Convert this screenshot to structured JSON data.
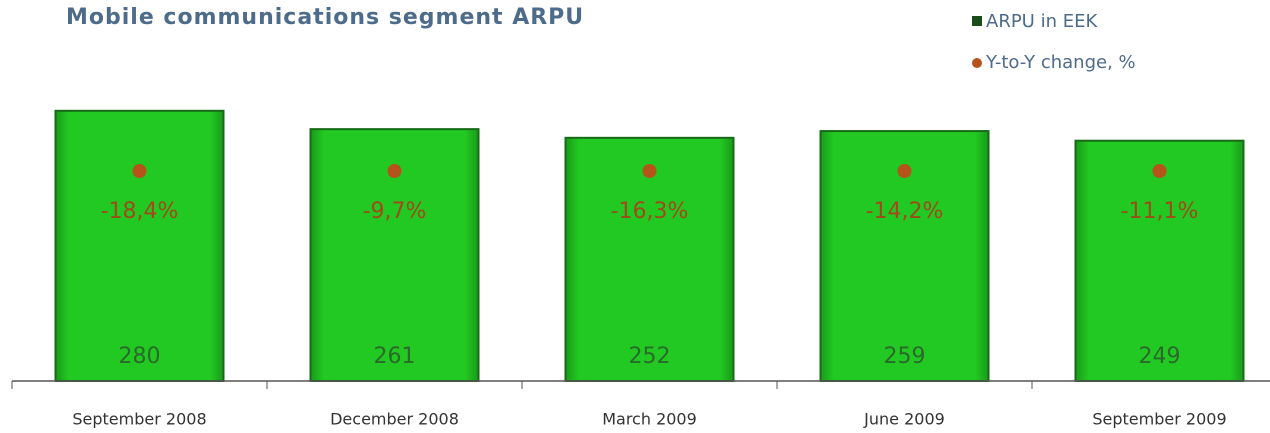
{
  "chart_data": {
    "type": "bar",
    "title": "Mobile communications segment ARPU",
    "categories": [
      "September 2008",
      "December 2008",
      "March 2009",
      "June 2009",
      "September 2009"
    ],
    "series": [
      {
        "name": "ARPU in EEK",
        "color": "#22c922",
        "values": [
          280,
          261,
          252,
          259,
          249
        ]
      },
      {
        "name": "Y-to-Y change, %",
        "color": "#b5531a",
        "values": [
          -18.4,
          -9.7,
          -16.3,
          -14.2,
          -11.1
        ],
        "value_labels": [
          "-18,4%",
          "-9,7%",
          "-16,3%",
          "-14,2%",
          "-11,1%"
        ]
      }
    ],
    "ylim": [
      0,
      300
    ],
    "legend": "top-right"
  }
}
